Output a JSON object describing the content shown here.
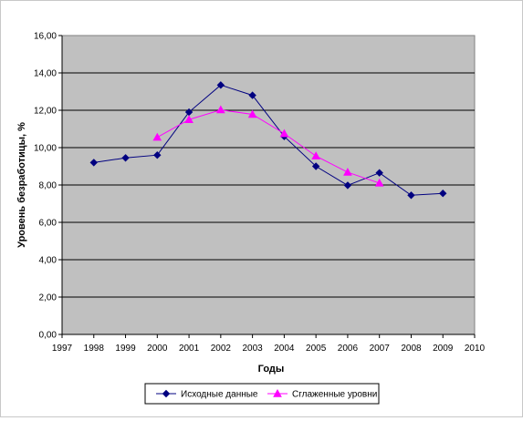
{
  "chart_data": {
    "type": "line",
    "xlabel": "Годы",
    "ylabel": "Уровень безработицы, %",
    "xlim": [
      1997,
      2010
    ],
    "ylim": [
      0,
      16
    ],
    "x_ticks": [
      "1997",
      "1998",
      "1999",
      "2000",
      "2001",
      "2002",
      "2003",
      "2004",
      "2005",
      "2006",
      "2007",
      "2008",
      "2009",
      "2010"
    ],
    "y_ticks": [
      "0,00",
      "2,00",
      "4,00",
      "6,00",
      "8,00",
      "10,00",
      "12,00",
      "14,00",
      "16,00"
    ],
    "grid": true,
    "legend_position": "bottom",
    "series": [
      {
        "name": "Исходные данные",
        "color": "#000080",
        "marker": "diamond",
        "x": [
          1998,
          1999,
          2000,
          2001,
          2002,
          2003,
          2004,
          2005,
          2006,
          2007,
          2008,
          2009
        ],
        "y": [
          9.2,
          9.45,
          9.6,
          11.9,
          13.35,
          12.8,
          10.6,
          9.0,
          7.98,
          8.65,
          7.45,
          7.55
        ]
      },
      {
        "name": "Сглаженные уровни",
        "color": "#ff00ff",
        "marker": "triangle",
        "x": [
          2000,
          2001,
          2002,
          2003,
          2004,
          2005,
          2006,
          2007
        ],
        "y": [
          10.55,
          11.5,
          12.02,
          11.78,
          10.75,
          9.55,
          8.68,
          8.1
        ]
      }
    ]
  }
}
